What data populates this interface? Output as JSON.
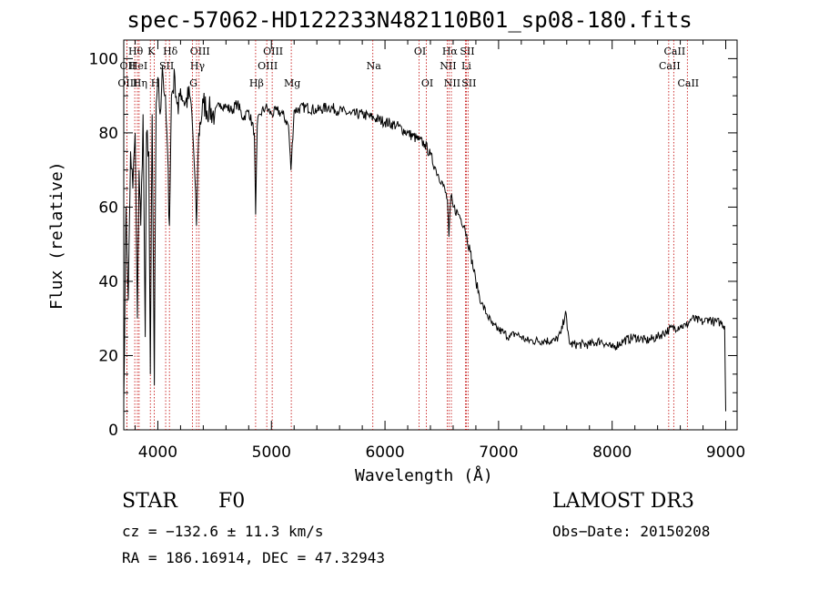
{
  "chart_data": {
    "type": "line",
    "title": "spec-57062-HD122233N482110B01_sp08-180.fits",
    "xlabel": "Wavelength (Å)",
    "ylabel": "Flux (relative)",
    "xlim": [
      3700,
      9100
    ],
    "ylim": [
      0,
      105
    ],
    "xticks": [
      4000,
      5000,
      6000,
      7000,
      8000,
      9000
    ],
    "yticks": [
      0,
      20,
      40,
      60,
      80,
      100
    ],
    "series": [
      {
        "name": "flux",
        "x": [
          3700,
          3720,
          3740,
          3760,
          3780,
          3800,
          3820,
          3835,
          3850,
          3870,
          3889,
          3900,
          3920,
          3934,
          3950,
          3969,
          3985,
          4000,
          4020,
          4040,
          4060,
          4080,
          4102,
          4120,
          4150,
          4180,
          4200,
          4240,
          4280,
          4300,
          4320,
          4340,
          4360,
          4400,
          4450,
          4500,
          4550,
          4600,
          4650,
          4700,
          4750,
          4800,
          4850,
          4861,
          4875,
          4900,
          4950,
          5000,
          5050,
          5100,
          5150,
          5172,
          5200,
          5300,
          5400,
          5500,
          5600,
          5700,
          5800,
          5900,
          6000,
          6100,
          6200,
          6300,
          6350,
          6400,
          6450,
          6500,
          6550,
          6563,
          6580,
          6600,
          6650,
          6700,
          6750,
          6800,
          6850,
          6900,
          6950,
          7000,
          7050,
          7100,
          7150,
          7200,
          7250,
          7300,
          7400,
          7500,
          7550,
          7590,
          7605,
          7630,
          7700,
          7800,
          7900,
          8000,
          8100,
          8200,
          8300,
          8400,
          8500,
          8600,
          8650,
          8700,
          8800,
          8850,
          8900,
          8950,
          8990,
          9000
        ],
        "y": [
          8,
          60,
          35,
          75,
          65,
          80,
          30,
          70,
          55,
          85,
          25,
          80,
          75,
          15,
          85,
          12,
          88,
          95,
          85,
          98,
          90,
          80,
          55,
          90,
          95,
          85,
          92,
          88,
          90,
          85,
          72,
          55,
          80,
          88,
          86,
          85,
          88,
          87,
          86,
          88,
          84,
          86,
          80,
          58,
          82,
          85,
          87,
          85,
          86,
          85,
          82,
          70,
          86,
          87,
          86,
          87,
          86,
          85,
          85,
          84,
          83,
          82,
          80,
          78,
          77,
          74,
          70,
          67,
          62,
          52,
          63,
          60,
          58,
          55,
          48,
          40,
          34,
          31,
          28,
          27,
          26,
          25,
          26,
          25,
          24,
          24,
          24,
          24,
          26,
          32,
          27,
          23,
          23,
          23,
          24,
          22,
          24,
          25,
          24,
          25,
          27,
          28,
          28,
          30,
          29,
          30,
          29,
          29,
          28,
          5
        ]
      }
    ],
    "lines": [
      {
        "label": "Hθ",
        "x": 3797,
        "row": 0
      },
      {
        "label": "OII",
        "x": 3727,
        "row": 1
      },
      {
        "label": "OIII",
        "x": 3727,
        "row": 2
      },
      {
        "label": "HeI",
        "x": 3820,
        "row": 1
      },
      {
        "label": "Hη",
        "x": 3835,
        "row": 2
      },
      {
        "label": "K",
        "x": 3934,
        "row": 0
      },
      {
        "label": "SII",
        "x": 4069,
        "row": 1
      },
      {
        "label": "H",
        "x": 3969,
        "row": 2
      },
      {
        "label": "Hδ",
        "x": 4102,
        "row": 0
      },
      {
        "label": "OIII",
        "x": 4363,
        "row": 0
      },
      {
        "label": "Hγ",
        "x": 4341,
        "row": 1
      },
      {
        "label": "G",
        "x": 4305,
        "row": 2
      },
      {
        "label": "Hβ",
        "x": 4861,
        "row": 2
      },
      {
        "label": "OIII",
        "x": 5007,
        "row": 0
      },
      {
        "label": "OIII",
        "x": 4959,
        "row": 1
      },
      {
        "label": "Mg",
        "x": 5175,
        "row": 2
      },
      {
        "label": "Na",
        "x": 5893,
        "row": 1
      },
      {
        "label": "OI",
        "x": 6300,
        "row": 0
      },
      {
        "label": "OI",
        "x": 6364,
        "row": 2
      },
      {
        "label": "Hα",
        "x": 6563,
        "row": 0
      },
      {
        "label": "SII",
        "x": 6716,
        "row": 0
      },
      {
        "label": "NII",
        "x": 6548,
        "row": 1
      },
      {
        "label": "Li",
        "x": 6708,
        "row": 1
      },
      {
        "label": "NII",
        "x": 6584,
        "row": 2
      },
      {
        "label": "SII",
        "x": 6731,
        "row": 2
      },
      {
        "label": "CaII",
        "x": 8542,
        "row": 0
      },
      {
        "label": "CaII",
        "x": 8498,
        "row": 1
      },
      {
        "label": "CaII",
        "x": 8662,
        "row": 2
      }
    ]
  },
  "info": {
    "object_class": "STAR",
    "subclass": "F0",
    "survey": "LAMOST DR3",
    "cz": "cz = −132.6 ± 11.3 km/s",
    "obs_date": "Obs−Date: 20150208",
    "coords": "RA = 186.16914, DEC =  47.32943"
  }
}
